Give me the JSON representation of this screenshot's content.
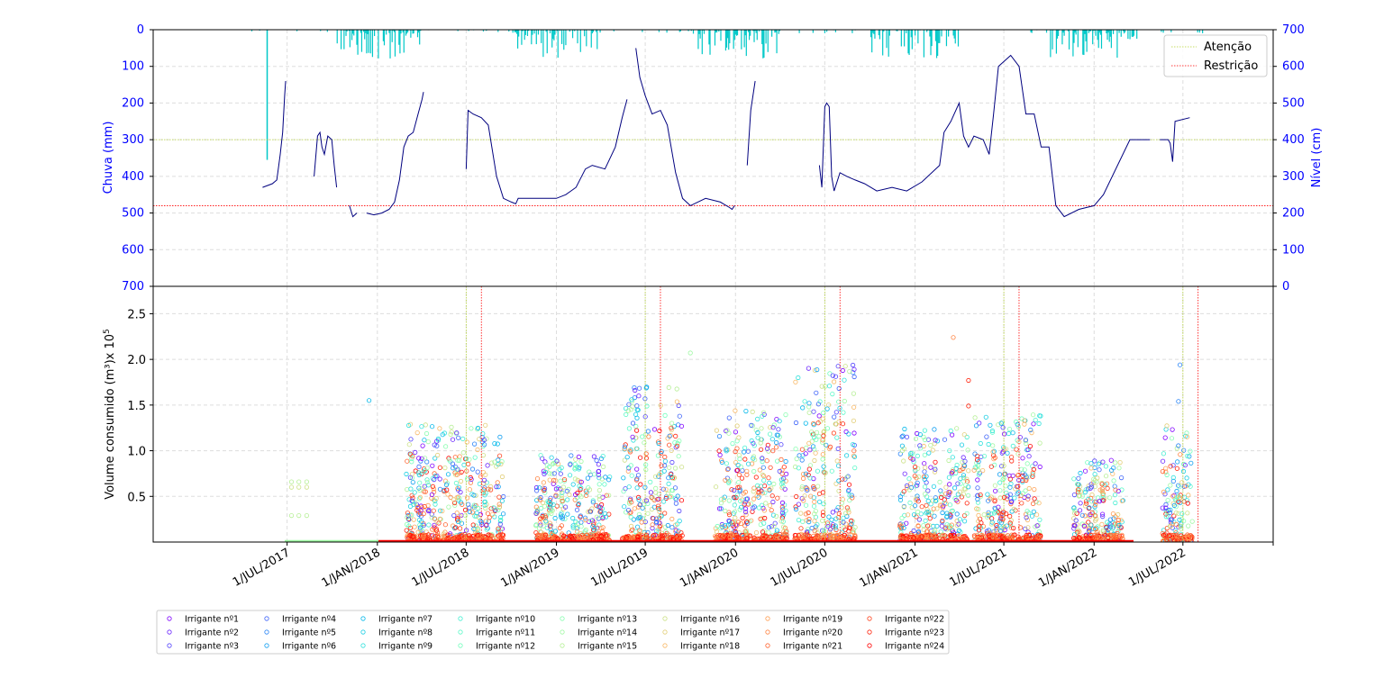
{
  "colors": {
    "rain_bars": "#00c8c8",
    "level_line": "#00007f",
    "attention": "#b5d334",
    "restriction": "#ff0000",
    "axis_label_blue": "#0000ff",
    "grid": "#dddddd"
  },
  "chart_data": [
    {
      "type": "line",
      "panel": "top",
      "ylabel_left": "Chuva (mm)",
      "ylabel_right": "Nível (cm)",
      "ylim_left": [
        700,
        0
      ],
      "ylim_right": [
        0,
        700
      ],
      "yticks_left": [
        "0",
        "100",
        "200",
        "300",
        "400",
        "500",
        "600",
        "700"
      ],
      "yticks_right": [
        "700",
        "600",
        "500",
        "400",
        "300",
        "200",
        "100",
        "0"
      ],
      "grid": true,
      "legend_position": "top-right",
      "legend": [
        {
          "name": "Atenção",
          "color": "#b5d334"
        },
        {
          "name": "Restrição",
          "color": "#ff0000"
        }
      ],
      "thresholds": {
        "attention_cm": 400,
        "restriction_cm": 220
      },
      "level_series_cm": [
        {
          "x": [
            "2017-05-12",
            "2017-06-01",
            "2017-06-10",
            "2017-06-14",
            "2017-06-17",
            "2017-06-22",
            "2017-06-26",
            "2017-06-28"
          ],
          "y": [
            270,
            280,
            290,
            330,
            360,
            420,
            520,
            560
          ]
        },
        {
          "x": [
            "2017-08-25",
            "2017-09-01",
            "2017-09-06",
            "2017-09-10",
            "2017-09-15",
            "2017-09-22",
            "2017-09-30",
            "2017-10-05",
            "2017-10-10"
          ],
          "y": [
            300,
            410,
            420,
            380,
            360,
            410,
            400,
            330,
            270
          ]
        },
        {
          "x": [
            "2017-11-05",
            "2017-11-12",
            "2017-11-20"
          ],
          "y": [
            220,
            190,
            200
          ]
        },
        {
          "x": [
            "2017-12-10",
            "2017-12-25",
            "2018-01-10",
            "2018-01-25",
            "2018-02-05",
            "2018-02-15",
            "2018-02-24",
            "2018-03-05",
            "2018-03-15",
            "2018-03-25",
            "2018-04-02",
            "2018-04-05"
          ],
          "y": [
            200,
            195,
            200,
            210,
            230,
            290,
            380,
            410,
            420,
            470,
            510,
            530
          ]
        },
        {
          "x": [
            "2018-07-01",
            "2018-07-05",
            "2018-07-15",
            "2018-08-01",
            "2018-08-15",
            "2018-09-01",
            "2018-09-15",
            "2018-10-01",
            "2018-10-10",
            "2018-10-15",
            "2018-11-01",
            "2018-12-01",
            "2019-01-01",
            "2019-01-20",
            "2019-02-10",
            "2019-03-01",
            "2019-03-15",
            "2019-04-10",
            "2019-05-01",
            "2019-05-15",
            "2019-05-25"
          ],
          "y": [
            320,
            480,
            470,
            460,
            440,
            300,
            240,
            230,
            225,
            240,
            240,
            240,
            240,
            250,
            270,
            320,
            330,
            320,
            380,
            460,
            510
          ]
        },
        {
          "x": [
            "2019-06-12",
            "2019-06-20",
            "2019-07-01",
            "2019-07-15",
            "2019-08-01",
            "2019-08-15",
            "2019-09-01",
            "2019-09-15",
            "2019-10-01",
            "2019-11-01",
            "2019-12-01",
            "2019-12-20",
            "2019-12-25",
            "2019-12-30"
          ],
          "y": [
            650,
            570,
            520,
            470,
            480,
            440,
            310,
            240,
            220,
            240,
            230,
            215,
            210,
            220
          ]
        },
        {
          "x": [
            "2020-01-25",
            "2020-02-01",
            "2020-02-10"
          ],
          "y": [
            330,
            480,
            560
          ]
        },
        {
          "x": [
            "2020-06-20",
            "2020-06-25",
            "2020-07-01",
            "2020-07-05",
            "2020-07-10",
            "2020-07-15",
            "2020-07-20",
            "2020-08-01",
            "2020-08-15",
            "2020-09-01",
            "2020-09-20",
            "2020-10-15",
            "2020-11-15",
            "2020-12-15",
            "2021-01-15",
            "2021-02-20",
            "2021-03-01",
            "2021-03-15",
            "2021-04-01",
            "2021-04-10",
            "2021-04-20",
            "2021-05-01",
            "2021-05-20",
            "2021-06-01",
            "2021-06-10",
            "2021-06-20",
            "2021-07-15",
            "2021-08-01",
            "2021-08-15",
            "2021-09-01",
            "2021-09-15",
            "2021-10-01",
            "2021-10-15",
            "2021-11-01",
            "2021-12-01",
            "2022-01-01",
            "2022-01-20",
            "2022-03-15",
            "2022-04-25"
          ],
          "y": [
            330,
            270,
            490,
            500,
            490,
            300,
            260,
            310,
            300,
            290,
            280,
            260,
            270,
            260,
            285,
            330,
            420,
            450,
            500,
            410,
            380,
            410,
            400,
            360,
            470,
            600,
            630,
            600,
            470,
            470,
            380,
            380,
            220,
            190,
            210,
            220,
            250,
            400,
            400
          ]
        },
        {
          "x": [
            "2022-05-15",
            "2022-06-01",
            "2022-06-05",
            "2022-06-10",
            "2022-06-15",
            "2022-07-15"
          ],
          "y": [
            400,
            400,
            390,
            340,
            450,
            460
          ]
        }
      ]
    },
    {
      "type": "scatter",
      "panel": "bottom",
      "ylabel": "Volume consumido (m³)x 10",
      "ylabel_exponent": "5",
      "yticks": [
        "0.5",
        "1.0",
        "1.5",
        "2.0",
        "2.5"
      ],
      "ylim": [
        0,
        2.8
      ],
      "xlim": [
        "2016-10-01",
        "2023-01-01"
      ],
      "xticks": [
        "1/JUL/2017",
        "1/JAN/2018",
        "1/JUL/2018",
        "1/JAN/2019",
        "1/JUL/2019",
        "1/JAN/2020",
        "1/JUL/2020",
        "1/JAN/2021",
        "1/JUL/2021",
        "1/JAN/2022",
        "1/JUL/2022"
      ],
      "xtick_dates": [
        "2017-07-01",
        "2018-01-01",
        "2018-07-01",
        "2019-01-01",
        "2019-07-01",
        "2020-01-01",
        "2020-07-01",
        "2021-01-01",
        "2021-07-01",
        "2022-01-01",
        "2022-07-01"
      ],
      "attention_dates": [
        "2018-07-01",
        "2019-07-01",
        "2020-07-01",
        "2021-07-01",
        "2022-07-01"
      ],
      "restriction_dates": [
        "2018-08-01",
        "2019-08-01",
        "2020-08-01",
        "2021-08-01",
        "2022-08-01"
      ],
      "grid": true,
      "legend_position": "bottom-left",
      "clusters": [
        {
          "start": "2018-03-01",
          "end": "2018-09-15",
          "ymax": 1.3
        },
        {
          "start": "2018-11-20",
          "end": "2019-04-20",
          "ymax": 0.95
        },
        {
          "start": "2019-05-15",
          "end": "2019-09-15",
          "ymax": 1.7
        },
        {
          "start": "2019-11-20",
          "end": "2020-04-15",
          "ymax": 1.45
        },
        {
          "start": "2020-05-01",
          "end": "2020-09-01",
          "ymax": 1.95
        },
        {
          "start": "2020-12-01",
          "end": "2021-04-20",
          "ymax": 1.25
        },
        {
          "start": "2021-05-01",
          "end": "2021-09-15",
          "ymax": 1.4
        },
        {
          "start": "2021-11-20",
          "end": "2022-03-01",
          "ymax": 0.9
        },
        {
          "start": "2022-05-20",
          "end": "2022-07-20",
          "ymax": 1.3
        }
      ],
      "outliers": [
        {
          "x": "2017-12-15",
          "y": 1.55,
          "series": 6
        },
        {
          "x": "2021-03-20",
          "y": 2.24,
          "series": 19
        },
        {
          "x": "2021-04-20",
          "y": 1.77,
          "series": 22
        },
        {
          "x": "2021-04-20",
          "y": 1.49,
          "series": 22
        },
        {
          "x": "2022-06-25",
          "y": 1.94,
          "series": 4
        },
        {
          "x": "2022-06-22",
          "y": 1.54,
          "series": 4
        },
        {
          "x": "2019-10-01",
          "y": 2.07,
          "series": 13
        },
        {
          "x": "2020-12-30",
          "y": 0.3,
          "series": 7
        }
      ],
      "early_points": [
        {
          "x": "2017-07-10",
          "y": 0.66,
          "series": 14
        },
        {
          "x": "2017-07-25",
          "y": 0.66,
          "series": 14
        },
        {
          "x": "2017-08-10",
          "y": 0.66,
          "series": 14
        },
        {
          "x": "2017-07-10",
          "y": 0.6,
          "series": 15
        },
        {
          "x": "2017-07-25",
          "y": 0.6,
          "series": 15
        },
        {
          "x": "2017-08-10",
          "y": 0.6,
          "series": 15
        },
        {
          "x": "2017-07-10",
          "y": 0.29,
          "series": 14
        },
        {
          "x": "2017-07-25",
          "y": 0.29,
          "series": 14
        },
        {
          "x": "2017-08-10",
          "y": 0.29,
          "series": 14
        }
      ],
      "series": [
        {
          "name": "Irrigante nº1",
          "color": "#8000ff"
        },
        {
          "name": "Irrigante nº2",
          "color": "#6a23fe"
        },
        {
          "name": "Irrigante nº3",
          "color": "#5444fc"
        },
        {
          "name": "Irrigante nº4",
          "color": "#3e64f9"
        },
        {
          "name": "Irrigante nº5",
          "color": "#2884f6"
        },
        {
          "name": "Irrigante nº6",
          "color": "#129ff0"
        },
        {
          "name": "Irrigante nº7",
          "color": "#04b8ea"
        },
        {
          "name": "Irrigante nº8",
          "color": "#1acee3"
        },
        {
          "name": "Irrigante nº9",
          "color": "#30e1dc"
        },
        {
          "name": "Irrigante nº10",
          "color": "#46efd2"
        },
        {
          "name": "Irrigante nº11",
          "color": "#5cf9c8"
        },
        {
          "name": "Irrigante nº12",
          "color": "#72febd"
        },
        {
          "name": "Irrigante nº13",
          "color": "#8afeb1"
        },
        {
          "name": "Irrigante nº14",
          "color": "#a0f9a4"
        },
        {
          "name": "Irrigante nº15",
          "color": "#b6ef96"
        },
        {
          "name": "Irrigante nº16",
          "color": "#cce187"
        },
        {
          "name": "Irrigante nº17",
          "color": "#e2ce77"
        },
        {
          "name": "Irrigante nº18",
          "color": "#f8b866"
        },
        {
          "name": "Irrigante nº19",
          "color": "#ff9f55"
        },
        {
          "name": "Irrigante nº20",
          "color": "#ff8443"
        },
        {
          "name": "Irrigante nº21",
          "color": "#ff6430"
        },
        {
          "name": "Irrigante nº22",
          "color": "#ff441e"
        },
        {
          "name": "Irrigante nº23",
          "color": "#ff230c"
        },
        {
          "name": "Irrigante nº24",
          "color": "#ff0000"
        }
      ]
    }
  ]
}
